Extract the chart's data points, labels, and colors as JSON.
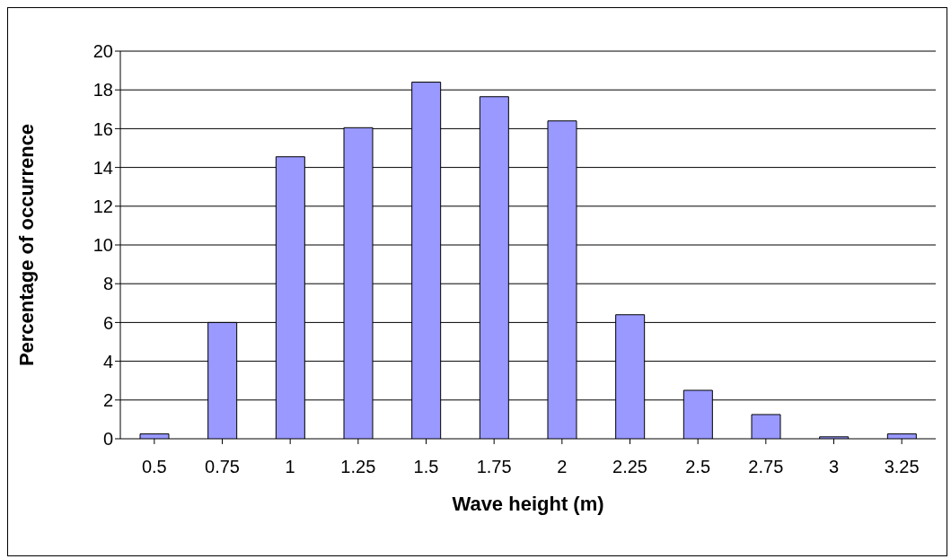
{
  "chart_data": {
    "type": "bar",
    "xlabel": "Wave height (m)",
    "ylabel": "Percentage of occurrence",
    "categories": [
      "0.5",
      "0.75",
      "1",
      "1.25",
      "1.5",
      "1.75",
      "2",
      "2.25",
      "2.5",
      "2.75",
      "3",
      "3.25"
    ],
    "values": [
      0.25,
      6.0,
      14.55,
      16.05,
      18.4,
      17.65,
      16.4,
      6.4,
      2.5,
      1.25,
      0.1,
      0.25
    ],
    "color": "#9999ff",
    "ylim": [
      0,
      20
    ],
    "yticks": [
      0,
      2,
      4,
      6,
      8,
      10,
      12,
      14,
      16,
      18,
      20
    ],
    "grid": "y",
    "legend": false
  }
}
